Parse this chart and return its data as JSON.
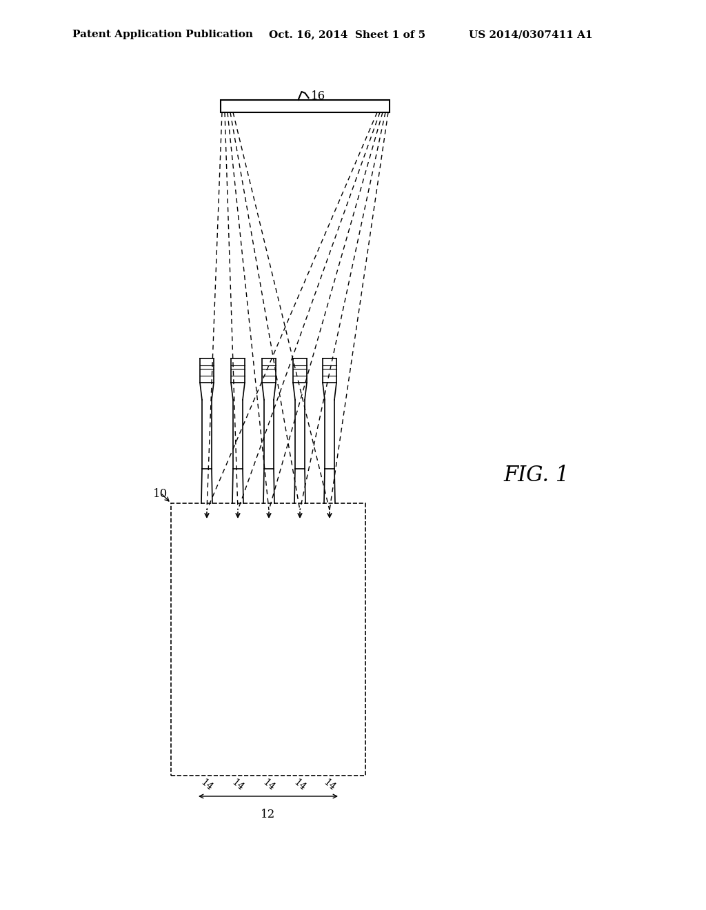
{
  "bg_color": "#ffffff",
  "header_text": "Patent Application Publication",
  "header_date": "Oct. 16, 2014  Sheet 1 of 5",
  "header_patent": "US 2014/0307411 A1",
  "fig_label": "FIG. 1",
  "label_10": "10",
  "label_12": "12",
  "label_14": "14",
  "label_16": "16",
  "title_fontsize": 11,
  "label_fontsize": 13
}
